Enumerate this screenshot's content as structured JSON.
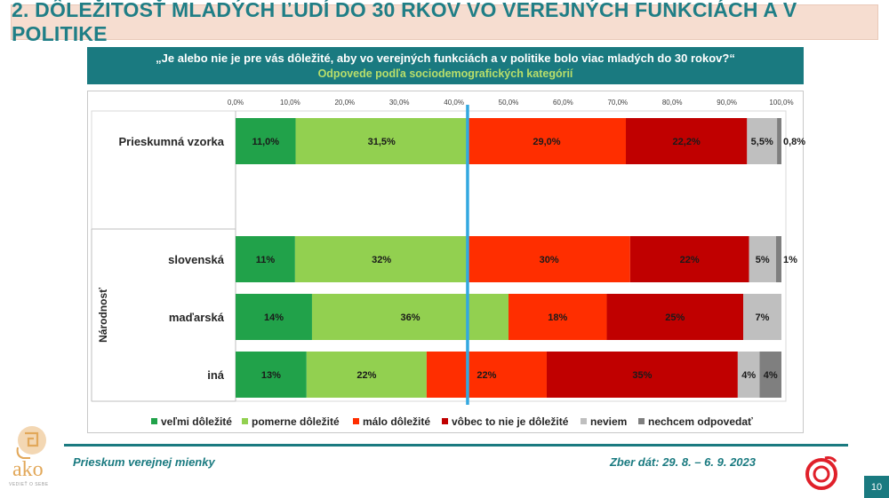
{
  "title": "2. DÔLEŽITOSŤ MLADÝCH ĽUDÍ DO 30 RKOV VO VEREJNÝCH FUNKCIÁCH A V POLITIKE",
  "question": "„Je alebo nie je pre vás dôležité, aby vo verejných funkciách a v politike bolo viac mladých do 30 rokov?“",
  "subtitle": "Odpovede podľa sociodemografických kategórií",
  "footer": {
    "survey": "Prieskum verejnej mienky",
    "dates": "Zber dát: 29. 8. – 6. 9. 2023",
    "page": "10"
  },
  "logo": {
    "text": "ako",
    "tagline": "VEDIEŤ O SEBE"
  },
  "colors": {
    "velmi": "#21a24a",
    "pomerne": "#92d050",
    "malo": "#ff2e00",
    "vobec": "#c00000",
    "neviem": "#bfbfbf",
    "nechcem": "#7f7f7f",
    "marker": "#33a8e0",
    "teal": "#1a7a80"
  },
  "chart_data": {
    "type": "bar",
    "orientation": "horizontal-stacked-100",
    "x_ticks": [
      "0,0%",
      "10,0%",
      "20,0%",
      "30,0%",
      "40,0%",
      "50,0%",
      "60,0%",
      "70,0%",
      "80,0%",
      "90,0%",
      "100,0%"
    ],
    "xlim": [
      0,
      100
    ],
    "reference_line": 42.5,
    "group_label": "Národnosť",
    "categories": [
      "Prieskumná vzorka",
      "slovenská",
      "maďarská",
      "iná"
    ],
    "series": [
      {
        "name": "veľmi dôležité",
        "color_key": "velmi",
        "values": [
          11.0,
          11,
          14,
          13
        ],
        "labels": [
          "11,0%",
          "11%",
          "14%",
          "13%"
        ]
      },
      {
        "name": "pomerne dôležité",
        "color_key": "pomerne",
        "values": [
          31.5,
          32,
          36,
          22
        ],
        "labels": [
          "31,5%",
          "32%",
          "36%",
          "22%"
        ]
      },
      {
        "name": "málo dôležité",
        "color_key": "malo",
        "values": [
          29.0,
          30,
          18,
          22
        ],
        "labels": [
          "29,0%",
          "30%",
          "18%",
          "22%"
        ]
      },
      {
        "name": "vôbec to nie je dôležité",
        "color_key": "vobec",
        "values": [
          22.2,
          22,
          25,
          35
        ],
        "labels": [
          "22,2%",
          "22%",
          "25%",
          "35%"
        ]
      },
      {
        "name": "neviem",
        "color_key": "neviem",
        "values": [
          5.5,
          5,
          7,
          4
        ],
        "labels": [
          "5,5%",
          "5%",
          "7%",
          "4%"
        ]
      },
      {
        "name": "nechcem odpovedať",
        "color_key": "nechcem",
        "values": [
          0.8,
          1,
          0,
          4
        ],
        "labels": [
          "0,8%",
          "1%",
          "",
          "4%"
        ]
      }
    ]
  }
}
